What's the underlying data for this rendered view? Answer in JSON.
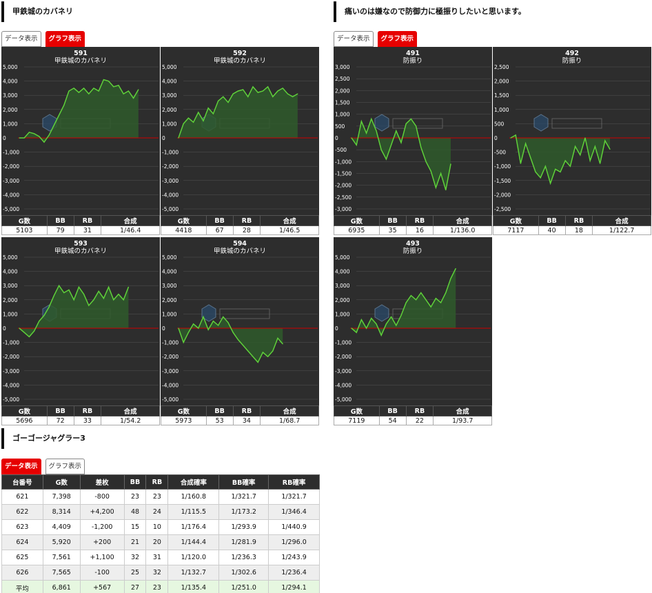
{
  "groups": [
    {
      "title": "甲鉄城のカバネリ",
      "tabs": {
        "data": "データ表示",
        "graph": "グラフ表示"
      },
      "machines": [
        {
          "number": "591",
          "name": "甲鉄城のカバネリ",
          "ylim": [
            -5000,
            5000
          ],
          "ticks": [
            "5,000",
            "4,000",
            "3,000",
            "2,000",
            "1,000",
            "0",
            "-1,000",
            "-2,000",
            "-3,000",
            "-4,000",
            "-5,000"
          ],
          "series": [
            0,
            0,
            400,
            300,
            100,
            -300,
            200,
            900,
            1600,
            2300,
            3300,
            3500,
            3200,
            3500,
            3100,
            3500,
            3300,
            4100,
            4000,
            3600,
            3700,
            3100,
            3300,
            2800,
            3400
          ],
          "stats": {
            "g": "5103",
            "bb": "79",
            "rb": "31",
            "total": "1/46.4"
          }
        },
        {
          "number": "592",
          "name": "甲鉄城のカバネリ",
          "ylim": [
            -5000,
            5000
          ],
          "ticks": [
            "5,000",
            "4,000",
            "3,000",
            "2,000",
            "1,000",
            "0",
            "-1,000",
            "-2,000",
            "-3,000",
            "-4,000",
            "-5,000"
          ],
          "series": [
            0,
            1000,
            1400,
            1100,
            1800,
            1200,
            2100,
            1700,
            2600,
            2900,
            2500,
            3100,
            3300,
            3400,
            2900,
            3600,
            3200,
            3300,
            3600,
            2900,
            3300,
            3500,
            3100,
            2900,
            3100
          ],
          "stats": {
            "g": "4418",
            "bb": "67",
            "rb": "28",
            "total": "1/46.5"
          }
        },
        {
          "number": "593",
          "name": "甲鉄城のカバネリ",
          "ylim": [
            -5000,
            5000
          ],
          "ticks": [
            "5,000",
            "4,000",
            "3,000",
            "2,000",
            "1,000",
            "0",
            "-1,000",
            "-2,000",
            "-3,000",
            "-4,000",
            "-5,000"
          ],
          "series": [
            0,
            -300,
            -600,
            -200,
            500,
            900,
            1500,
            2300,
            3000,
            2500,
            2700,
            2000,
            2900,
            2400,
            1600,
            2000,
            2600,
            2100,
            2900,
            2000,
            2400,
            2000,
            2900
          ],
          "stats": {
            "g": "5696",
            "bb": "72",
            "rb": "33",
            "total": "1/54.2"
          }
        },
        {
          "number": "594",
          "name": "甲鉄城のカバネリ",
          "ylim": [
            -5000,
            5000
          ],
          "ticks": [
            "5,000",
            "4,000",
            "3,000",
            "2,000",
            "1,000",
            "0",
            "-1,000",
            "-2,000",
            "-3,000",
            "-4,000",
            "-5,000"
          ],
          "series": [
            0,
            -1000,
            -300,
            300,
            0,
            800,
            -100,
            500,
            200,
            800,
            400,
            -300,
            -800,
            -1200,
            -1600,
            -2000,
            -2400,
            -1700,
            -2000,
            -1600,
            -700,
            -1100
          ],
          "stats": {
            "g": "5973",
            "bb": "53",
            "rb": "34",
            "total": "1/68.7"
          }
        }
      ]
    },
    {
      "title": "痛いのは嫌なので防御力に極振りしたいと思います。",
      "tabs": {
        "data": "データ表示",
        "graph": "グラフ表示"
      },
      "machines": [
        {
          "number": "491",
          "name": "防振り",
          "ylim": [
            -3000,
            3000
          ],
          "ticks": [
            "3,000",
            "2,500",
            "2,000",
            "1,500",
            "1,000",
            "500",
            "0",
            "-500",
            "-1,000",
            "-1,500",
            "-2,000",
            "-2,500",
            "-3,000"
          ],
          "series": [
            0,
            -300,
            700,
            200,
            800,
            300,
            -500,
            -900,
            -300,
            300,
            -200,
            600,
            800,
            500,
            -400,
            -1000,
            -1400,
            -2100,
            -1500,
            -2200,
            -1100
          ],
          "stats": {
            "g": "6935",
            "bb": "35",
            "rb": "16",
            "total": "1/136.0"
          }
        },
        {
          "number": "492",
          "name": "防振り",
          "ylim": [
            -2500,
            2500
          ],
          "ticks": [
            "2,500",
            "2,000",
            "1,500",
            "1,000",
            "500",
            "0",
            "-500",
            "-1,000",
            "-1,500",
            "-2,000",
            "-2,500"
          ],
          "series": [
            0,
            100,
            -900,
            -200,
            -700,
            -1200,
            -1400,
            -1000,
            -1600,
            -1100,
            -1200,
            -800,
            -1000,
            -300,
            -600,
            0,
            -800,
            -300,
            -900,
            -100,
            -400
          ],
          "stats": {
            "g": "7117",
            "bb": "40",
            "rb": "18",
            "total": "1/122.7"
          }
        },
        {
          "number": "493",
          "name": "防振り",
          "ylim": [
            -5000,
            5000
          ],
          "ticks": [
            "5,000",
            "4,000",
            "3,000",
            "2,000",
            "1,000",
            "0",
            "-1,000",
            "-2,000",
            "-3,000",
            "-4,000",
            "-5,000"
          ],
          "series": [
            0,
            -300,
            600,
            0,
            700,
            300,
            -500,
            300,
            800,
            200,
            900,
            1800,
            2300,
            2000,
            2500,
            2000,
            1500,
            2100,
            1800,
            2500,
            3500,
            4200
          ],
          "stats": {
            "g": "7119",
            "bb": "54",
            "rb": "22",
            "total": "1/93.7"
          }
        }
      ]
    }
  ],
  "stat_headers": {
    "g": "G数",
    "bb": "BB",
    "rb": "RB",
    "total": "合成"
  },
  "juggler": {
    "title": "ゴーゴージャグラー3",
    "tabs": {
      "data": "データ表示",
      "graph": "グラフ表示"
    },
    "headers": [
      "台番号",
      "G数",
      "差枚",
      "BB",
      "RB",
      "合成確率",
      "BB確率",
      "RB確率"
    ],
    "rows": [
      [
        "621",
        "7,398",
        "-800",
        "23",
        "23",
        "1/160.8",
        "1/321.7",
        "1/321.7"
      ],
      [
        "622",
        "8,314",
        "+4,200",
        "48",
        "24",
        "1/115.5",
        "1/173.2",
        "1/346.4"
      ],
      [
        "623",
        "4,409",
        "-1,200",
        "15",
        "10",
        "1/176.4",
        "1/293.9",
        "1/440.9"
      ],
      [
        "624",
        "5,920",
        "+200",
        "21",
        "20",
        "1/144.4",
        "1/281.9",
        "1/296.0"
      ],
      [
        "625",
        "7,561",
        "+1,100",
        "32",
        "31",
        "1/120.0",
        "1/236.3",
        "1/243.9"
      ],
      [
        "626",
        "7,565",
        "-100",
        "25",
        "32",
        "1/132.7",
        "1/302.6",
        "1/236.4"
      ]
    ],
    "average": [
      "平均",
      "6,861",
      "+567",
      "27",
      "23",
      "1/135.4",
      "1/251.0",
      "1/294.1"
    ]
  },
  "colors": {
    "line": "#5fd13a",
    "fill": "#2f5a2c",
    "zero": "#d00000",
    "grid": "#555555",
    "accent": "#e60000"
  }
}
